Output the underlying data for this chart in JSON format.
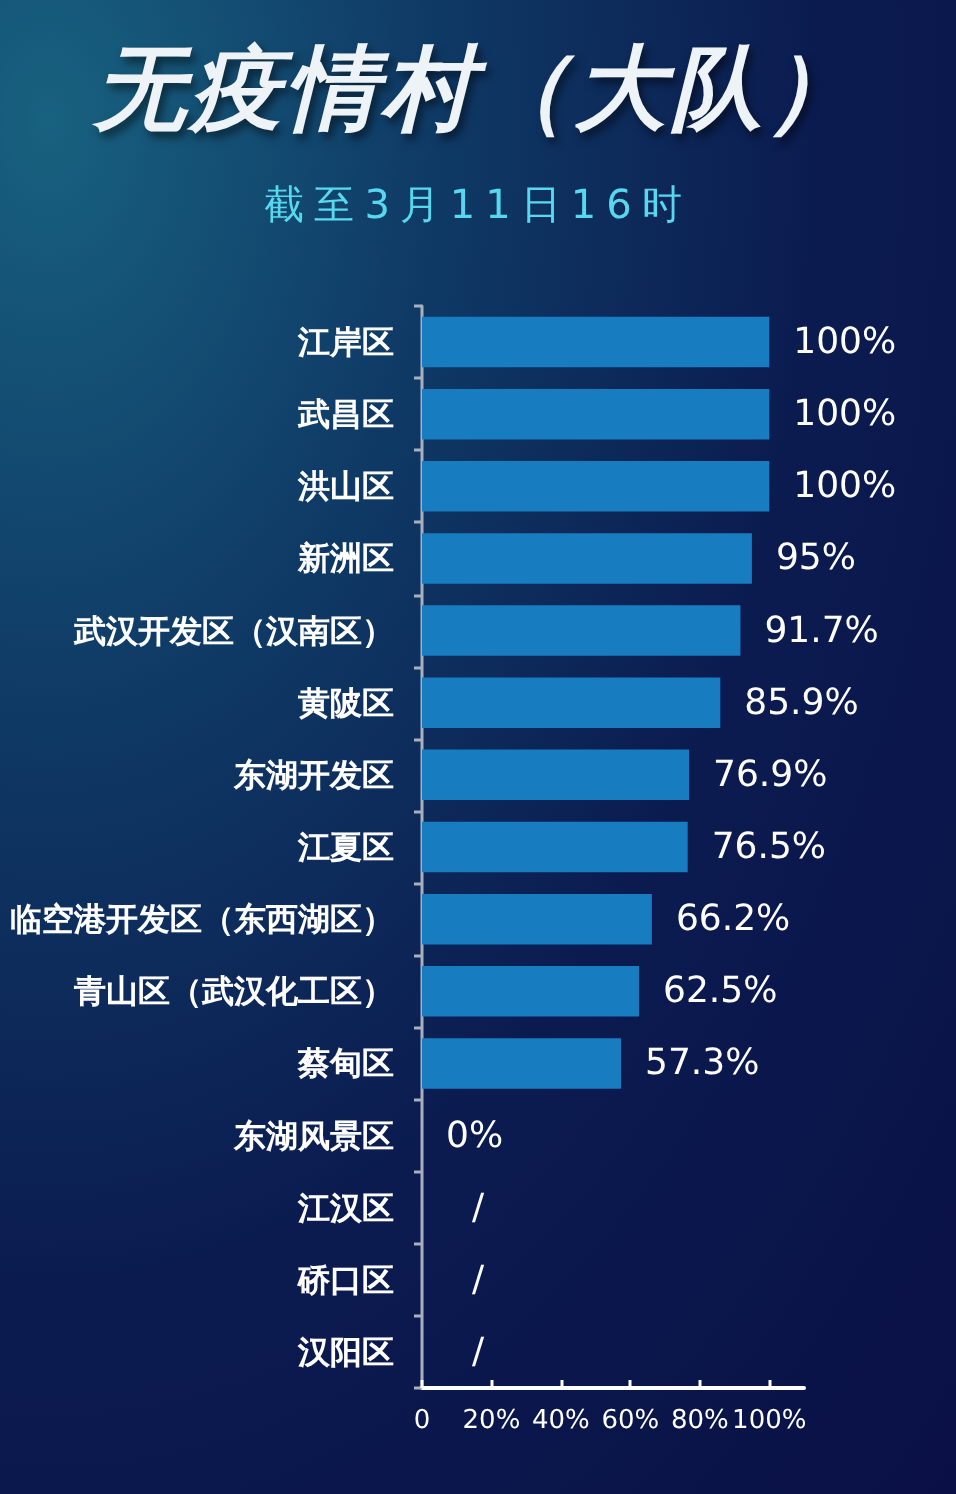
{
  "chart_data": {
    "type": "bar",
    "orientation": "horizontal",
    "title": "无疫情村（大队）",
    "subtitle": "截至3月11日16时",
    "categories": [
      "江岸区",
      "武昌区",
      "洪山区",
      "新洲区",
      "武汉开发区（汉南区）",
      "黄陂区",
      "东湖开发区",
      "江夏区",
      "临空港开发区（东西湖区）",
      "青山区（武汉化工区）",
      "蔡甸区",
      "东湖风景区",
      "江汉区",
      "硚口区",
      "汉阳区"
    ],
    "values": [
      100,
      100,
      100,
      95,
      91.7,
      85.9,
      76.9,
      76.5,
      66.2,
      62.5,
      57.3,
      0,
      null,
      null,
      null
    ],
    "value_labels": [
      "100%",
      "100%",
      "100%",
      "95%",
      "91.7%",
      "85.9%",
      "76.9%",
      "76.5%",
      "66.2%",
      "62.5%",
      "57.3%",
      "0%",
      "/",
      "/",
      "/"
    ],
    "color": "#177cc0",
    "xlim": [
      0,
      110
    ],
    "xticks": [
      0,
      {
        "value": 20,
        "label": "20%"
      },
      {
        "value": 40,
        "label": "40%"
      },
      {
        "value": 60,
        "label": "60%"
      },
      {
        "value": 80,
        "label": "80%"
      },
      {
        "value": 100,
        "label": "100%"
      }
    ]
  }
}
